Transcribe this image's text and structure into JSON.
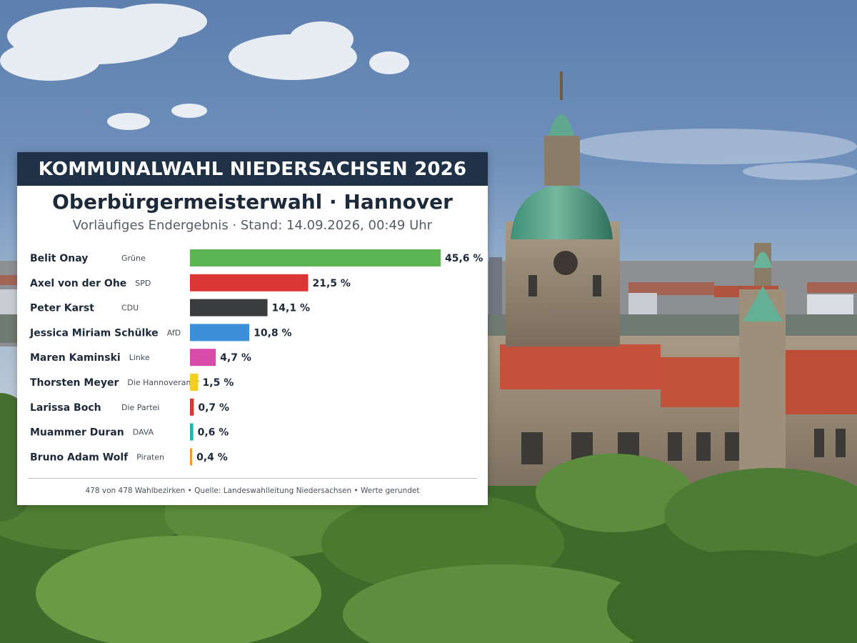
{
  "header": {
    "banner": "KOMMUNALWAHL NIEDERSACHSEN 2026",
    "title": "Oberbürgermeisterwahl · Hannover",
    "subtitle": "Vorläufiges Endergebnis · Stand: 14.09.2026, 00:49 Uhr"
  },
  "footer": {
    "text": "478 von 478 Wahlbezirken  •  Quelle:  Landeswahlleitung Niedersachsen • Werte gerundet"
  },
  "chart_data": {
    "type": "bar",
    "orientation": "horizontal",
    "unit": "%",
    "categories": [
      "Belit Onay",
      "Axel von der Ohe",
      "Peter Karst",
      "Jessica Miriam Schülke",
      "Maren Kaminski",
      "Thorsten Meyer",
      "Larissa Boch",
      "Muammer Duran",
      "Bruno Adam Wolf"
    ],
    "parties": [
      "Grüne",
      "SPD",
      "CDU",
      "AfD",
      "Linke",
      "Die Hannoveraner",
      "Die Partei",
      "DAVA",
      "Piraten"
    ],
    "values": [
      45.6,
      21.5,
      14.1,
      10.8,
      4.7,
      1.5,
      0.7,
      0.6,
      0.4
    ],
    "value_labels": [
      "45,6 %",
      "21,5 %",
      "14,1 %",
      "10,8 %",
      "4,7 %",
      "1,5 %",
      "0,7 %",
      "0,6 %",
      "0,4 %"
    ],
    "colors": [
      "#5ab552",
      "#db3535",
      "#3a3b3d",
      "#3d8fd9",
      "#d84ba8",
      "#f2cf22",
      "#d23a3a",
      "#1fb8b0",
      "#f29a30"
    ],
    "xlim": [
      0,
      45.6
    ],
    "grid": false,
    "legend": "none"
  }
}
